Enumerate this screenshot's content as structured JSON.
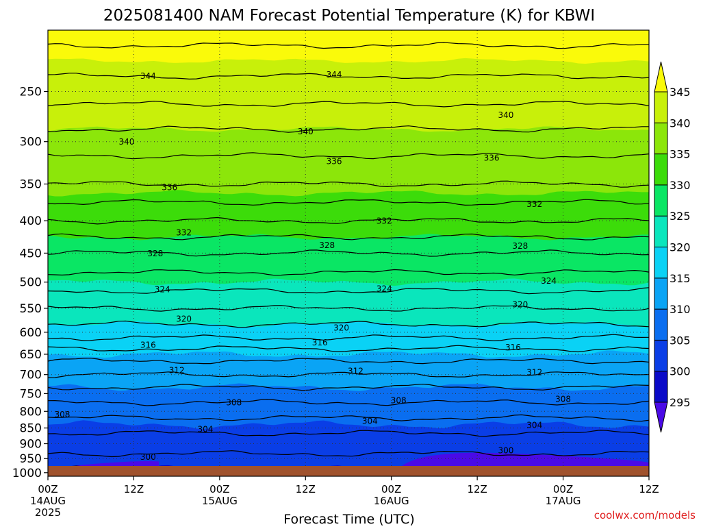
{
  "chart_data": {
    "type": "contour",
    "title": "2025081400 NAM Forecast Potential Temperature (K) for KBWI",
    "xlabel": "Forecast Time (UTC)",
    "ylabel": "",
    "credit": "coolwx.com/models",
    "units": "K",
    "y_axis": {
      "scale": "log-pressure",
      "ticks": [
        250,
        300,
        350,
        400,
        450,
        500,
        550,
        600,
        650,
        700,
        750,
        800,
        850,
        900,
        950,
        1000
      ],
      "range": [
        200,
        1013
      ]
    },
    "x_axis": {
      "range_hours": [
        0,
        84
      ],
      "ticks": [
        {
          "hour": 0,
          "lines": [
            "00Z",
            "14AUG",
            "2025"
          ]
        },
        {
          "hour": 12,
          "lines": [
            "12Z"
          ]
        },
        {
          "hour": 24,
          "lines": [
            "00Z",
            "15AUG"
          ]
        },
        {
          "hour": 36,
          "lines": [
            "12Z"
          ]
        },
        {
          "hour": 48,
          "lines": [
            "00Z",
            "16AUG"
          ]
        },
        {
          "hour": 60,
          "lines": [
            "12Z"
          ]
        },
        {
          "hour": 72,
          "lines": [
            "00Z",
            "17AUG"
          ]
        },
        {
          "hour": 84,
          "lines": [
            "12Z"
          ]
        }
      ]
    },
    "colorbar": {
      "labels": [
        "295",
        "300",
        "305",
        "310",
        "315",
        "320",
        "325",
        "330",
        "335",
        "340",
        "345"
      ],
      "levels": [
        295,
        300,
        305,
        310,
        315,
        320,
        325,
        330,
        335,
        340,
        345
      ],
      "colors": [
        "#4a0ae6",
        "#0a0ac8",
        "#0a3ee6",
        "#0a6ef0",
        "#0aa4f5",
        "#0ad2f5",
        "#0ae6bc",
        "#0ae664",
        "#3cdc0a",
        "#8ce60a",
        "#c8f00a",
        "#fafa0a"
      ]
    },
    "contour_interval": 2,
    "theta_profile": [
      {
        "p": 1000,
        "theta": 299.5
      },
      {
        "p": 950,
        "theta": 301.5
      },
      {
        "p": 900,
        "theta": 303
      },
      {
        "p": 850,
        "theta": 304.5
      },
      {
        "p": 800,
        "theta": 307
      },
      {
        "p": 750,
        "theta": 309
      },
      {
        "p": 700,
        "theta": 312
      },
      {
        "p": 650,
        "theta": 315
      },
      {
        "p": 600,
        "theta": 319
      },
      {
        "p": 550,
        "theta": 322
      },
      {
        "p": 500,
        "theta": 325
      },
      {
        "p": 450,
        "theta": 328
      },
      {
        "p": 400,
        "theta": 332
      },
      {
        "p": 350,
        "theta": 336
      },
      {
        "p": 300,
        "theta": 339
      },
      {
        "p": 250,
        "theta": 343
      },
      {
        "p": 200,
        "theta": 347
      }
    ],
    "contour_labels": [
      {
        "text": "344",
        "hour": 14,
        "p": 236
      },
      {
        "text": "344",
        "hour": 40,
        "p": 235
      },
      {
        "text": "340",
        "hour": 64,
        "p": 272
      },
      {
        "text": "340",
        "hour": 11,
        "p": 300
      },
      {
        "text": "340",
        "hour": 36,
        "p": 289
      },
      {
        "text": "336",
        "hour": 40,
        "p": 322
      },
      {
        "text": "336",
        "hour": 62,
        "p": 318
      },
      {
        "text": "336",
        "hour": 17,
        "p": 354
      },
      {
        "text": "332",
        "hour": 68,
        "p": 376
      },
      {
        "text": "332",
        "hour": 47,
        "p": 400
      },
      {
        "text": "332",
        "hour": 19,
        "p": 417
      },
      {
        "text": "328",
        "hour": 15,
        "p": 450
      },
      {
        "text": "328",
        "hour": 39,
        "p": 437
      },
      {
        "text": "328",
        "hour": 66,
        "p": 438
      },
      {
        "text": "324",
        "hour": 70,
        "p": 497
      },
      {
        "text": "324",
        "hour": 47,
        "p": 512
      },
      {
        "text": "324",
        "hour": 16,
        "p": 513
      },
      {
        "text": "320",
        "hour": 66,
        "p": 542
      },
      {
        "text": "320",
        "hour": 19,
        "p": 571
      },
      {
        "text": "320",
        "hour": 41,
        "p": 590
      },
      {
        "text": "316",
        "hour": 38,
        "p": 622
      },
      {
        "text": "316",
        "hour": 14,
        "p": 628
      },
      {
        "text": "316",
        "hour": 65,
        "p": 633
      },
      {
        "text": "312",
        "hour": 18,
        "p": 688
      },
      {
        "text": "312",
        "hour": 43,
        "p": 690
      },
      {
        "text": "312",
        "hour": 68,
        "p": 694
      },
      {
        "text": "308",
        "hour": 26,
        "p": 774
      },
      {
        "text": "308",
        "hour": 49,
        "p": 768
      },
      {
        "text": "308",
        "hour": 72,
        "p": 764
      },
      {
        "text": "308",
        "hour": 2,
        "p": 808
      },
      {
        "text": "304",
        "hour": 22,
        "p": 853
      },
      {
        "text": "304",
        "hour": 45,
        "p": 828
      },
      {
        "text": "304",
        "hour": 68,
        "p": 840
      },
      {
        "text": "300",
        "hour": 14,
        "p": 944
      },
      {
        "text": "300",
        "hour": 64,
        "p": 922
      }
    ]
  }
}
